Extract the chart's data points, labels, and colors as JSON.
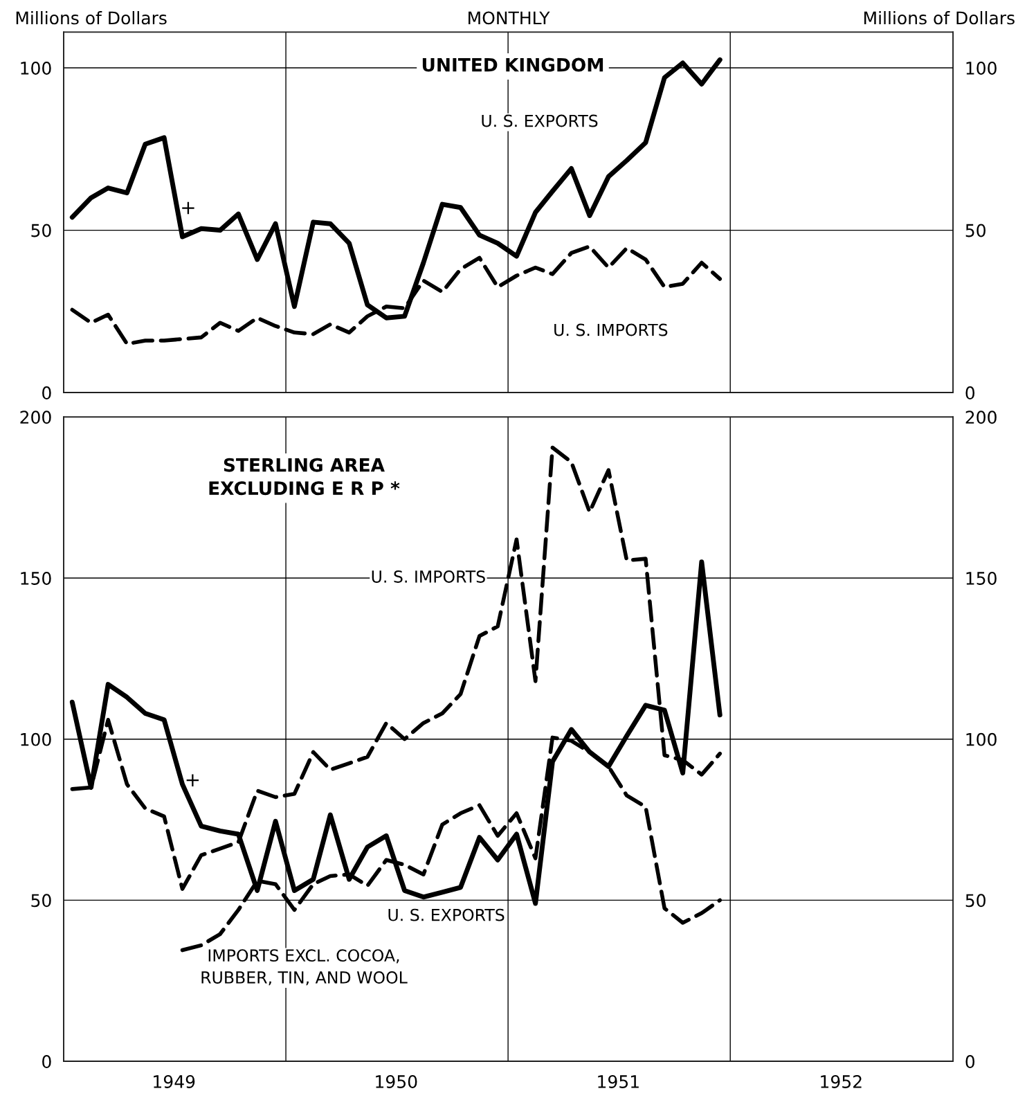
{
  "chart_data": [
    {
      "type": "line",
      "subtitle": "MONTHLY",
      "title": "UNITED KINGDOM",
      "ylabel": "Millions of Dollars",
      "y2label": "Millions of Dollars",
      "x": [
        "1949-01-15",
        "1949-02-15",
        "1949-03-15",
        "1949-04-15",
        "1949-05-15",
        "1949-06-15",
        "1949-07-15",
        "1949-08-15",
        "1949-09-15",
        "1949-10-15",
        "1949-11-15",
        "1949-12-15",
        "1950-01-15",
        "1950-02-15",
        "1950-03-15",
        "1950-04-15",
        "1950-05-15",
        "1950-06-15",
        "1950-07-15",
        "1950-08-15",
        "1950-09-15",
        "1950-10-15",
        "1950-11-15",
        "1950-12-15",
        "1951-01-15",
        "1951-02-15",
        "1951-03-15",
        "1951-04-15",
        "1951-05-15",
        "1951-06-15",
        "1951-07-15",
        "1951-08-15",
        "1951-09-15",
        "1951-10-15",
        "1951-11-15",
        "1951-12-15"
      ],
      "series": [
        {
          "name": "U. S. EXPORTS",
          "color": "#000000",
          "line_style": "solid",
          "values": [
            54,
            60,
            63,
            61.5,
            76.5,
            78.5,
            48,
            50.5,
            50,
            55,
            41,
            52,
            26.5,
            52.5,
            52,
            46,
            27,
            23,
            23.5,
            40,
            58,
            57,
            48.5,
            46,
            42,
            55.5,
            62,
            69,
            54.5,
            66.5,
            71.5,
            77,
            97,
            101.5,
            95,
            102.5
          ]
        },
        {
          "name": "U. S. IMPORTS",
          "color": "#000000",
          "line_style": "dashed",
          "values": [
            25.5,
            21.5,
            24,
            15,
            16,
            16,
            16.5,
            17,
            21.5,
            19,
            23,
            20.5,
            18.5,
            18,
            21,
            18.5,
            23.5,
            26.5,
            26,
            34.5,
            31,
            38,
            41.5,
            32.5,
            36,
            38.5,
            36.5,
            43,
            45,
            38.5,
            44.5,
            41,
            32.5,
            33.5,
            40,
            35
          ]
        }
      ],
      "xlim": [
        "1949-01-01",
        "1953-01-01"
      ],
      "ylim": [
        0,
        111
      ],
      "yticks": [
        0,
        50,
        100
      ],
      "y2lim": [
        0,
        111
      ],
      "y2ticks": [
        0,
        50,
        100
      ],
      "ref_lines": [
        {
          "axis": "x",
          "value": "1950-01-01"
        },
        {
          "axis": "x",
          "value": "1951-01-01"
        },
        {
          "axis": "x",
          "value": "1952-01-01"
        }
      ],
      "grid": "y",
      "tick_labels": "y",
      "annotations": [
        "+"
      ]
    },
    {
      "type": "line",
      "title": "STERLING AREA\nEXCLUDING E R P *",
      "x": [
        "1949-01-15",
        "1949-02-15",
        "1949-03-15",
        "1949-04-15",
        "1949-05-15",
        "1949-06-15",
        "1949-07-15",
        "1949-08-15",
        "1949-09-15",
        "1949-10-15",
        "1949-11-15",
        "1949-12-15",
        "1950-01-15",
        "1950-02-15",
        "1950-03-15",
        "1950-04-15",
        "1950-05-15",
        "1950-06-15",
        "1950-07-15",
        "1950-08-15",
        "1950-09-15",
        "1950-10-15",
        "1950-11-15",
        "1950-12-15",
        "1951-01-15",
        "1951-02-15",
        "1951-03-15",
        "1951-04-15",
        "1951-05-15",
        "1951-06-15",
        "1951-07-15",
        "1951-08-15",
        "1951-09-15",
        "1951-10-15",
        "1951-11-15",
        "1951-12-15"
      ],
      "series": [
        {
          "name": "U. S. IMPORTS",
          "color": "#000000",
          "line_style": "dashed",
          "values": [
            84.5,
            85,
            106,
            86,
            78.5,
            76,
            53.5,
            64,
            66,
            68,
            84,
            82,
            83,
            96,
            90.5,
            92.5,
            94.5,
            105,
            100,
            105,
            108,
            114,
            132,
            135,
            162,
            118,
            190.5,
            186,
            170.5,
            183.5,
            155.5,
            156,
            95,
            93.5,
            89,
            95.5
          ]
        },
        {
          "name": "U. S. EXPORTS",
          "color": "#000000",
          "line_style": "solid",
          "values": [
            111.5,
            85,
            117,
            113,
            108,
            106,
            86,
            73,
            71.5,
            70.5,
            53,
            74.5,
            53,
            56.5,
            76.5,
            56.5,
            66.5,
            70,
            53,
            51,
            52.5,
            54,
            69.5,
            62.5,
            70.5,
            49,
            93,
            103,
            96,
            91.5,
            101,
            110.5,
            109,
            89.5,
            155,
            107.5
          ]
        },
        {
          "name": "IMPORTS EXCL. COCOA,\nRUBBER, TIN, AND WOOL",
          "color": "#000000",
          "line_style": "dashed",
          "values": [
            null,
            null,
            null,
            null,
            null,
            null,
            34.5,
            36,
            39.5,
            47,
            56,
            55,
            47,
            55,
            57.5,
            58,
            54.5,
            62.5,
            61,
            58,
            73.5,
            77,
            79.5,
            70,
            77,
            63,
            100.5,
            99.5,
            96,
            91.5,
            82.5,
            79,
            47.5,
            43,
            46,
            50
          ]
        }
      ],
      "xlim": [
        "1949-01-01",
        "1953-01-01"
      ],
      "xticks": [
        {
          "value": "1949-07-01",
          "label": "1949"
        },
        {
          "value": "1950-07-01",
          "label": "1950"
        },
        {
          "value": "1951-07-01",
          "label": "1951"
        },
        {
          "value": "1952-07-01",
          "label": "1952"
        }
      ],
      "ylim": [
        0,
        200
      ],
      "yticks": [
        0,
        50,
        100,
        150,
        200
      ],
      "y2lim": [
        0,
        200
      ],
      "y2ticks": [
        0,
        50,
        100,
        150,
        200
      ],
      "ref_lines": [
        {
          "axis": "x",
          "value": "1950-01-01"
        },
        {
          "axis": "x",
          "value": "1951-01-01"
        },
        {
          "axis": "x",
          "value": "1952-01-01"
        }
      ],
      "grid": "y",
      "annotations": [
        "+"
      ]
    }
  ]
}
